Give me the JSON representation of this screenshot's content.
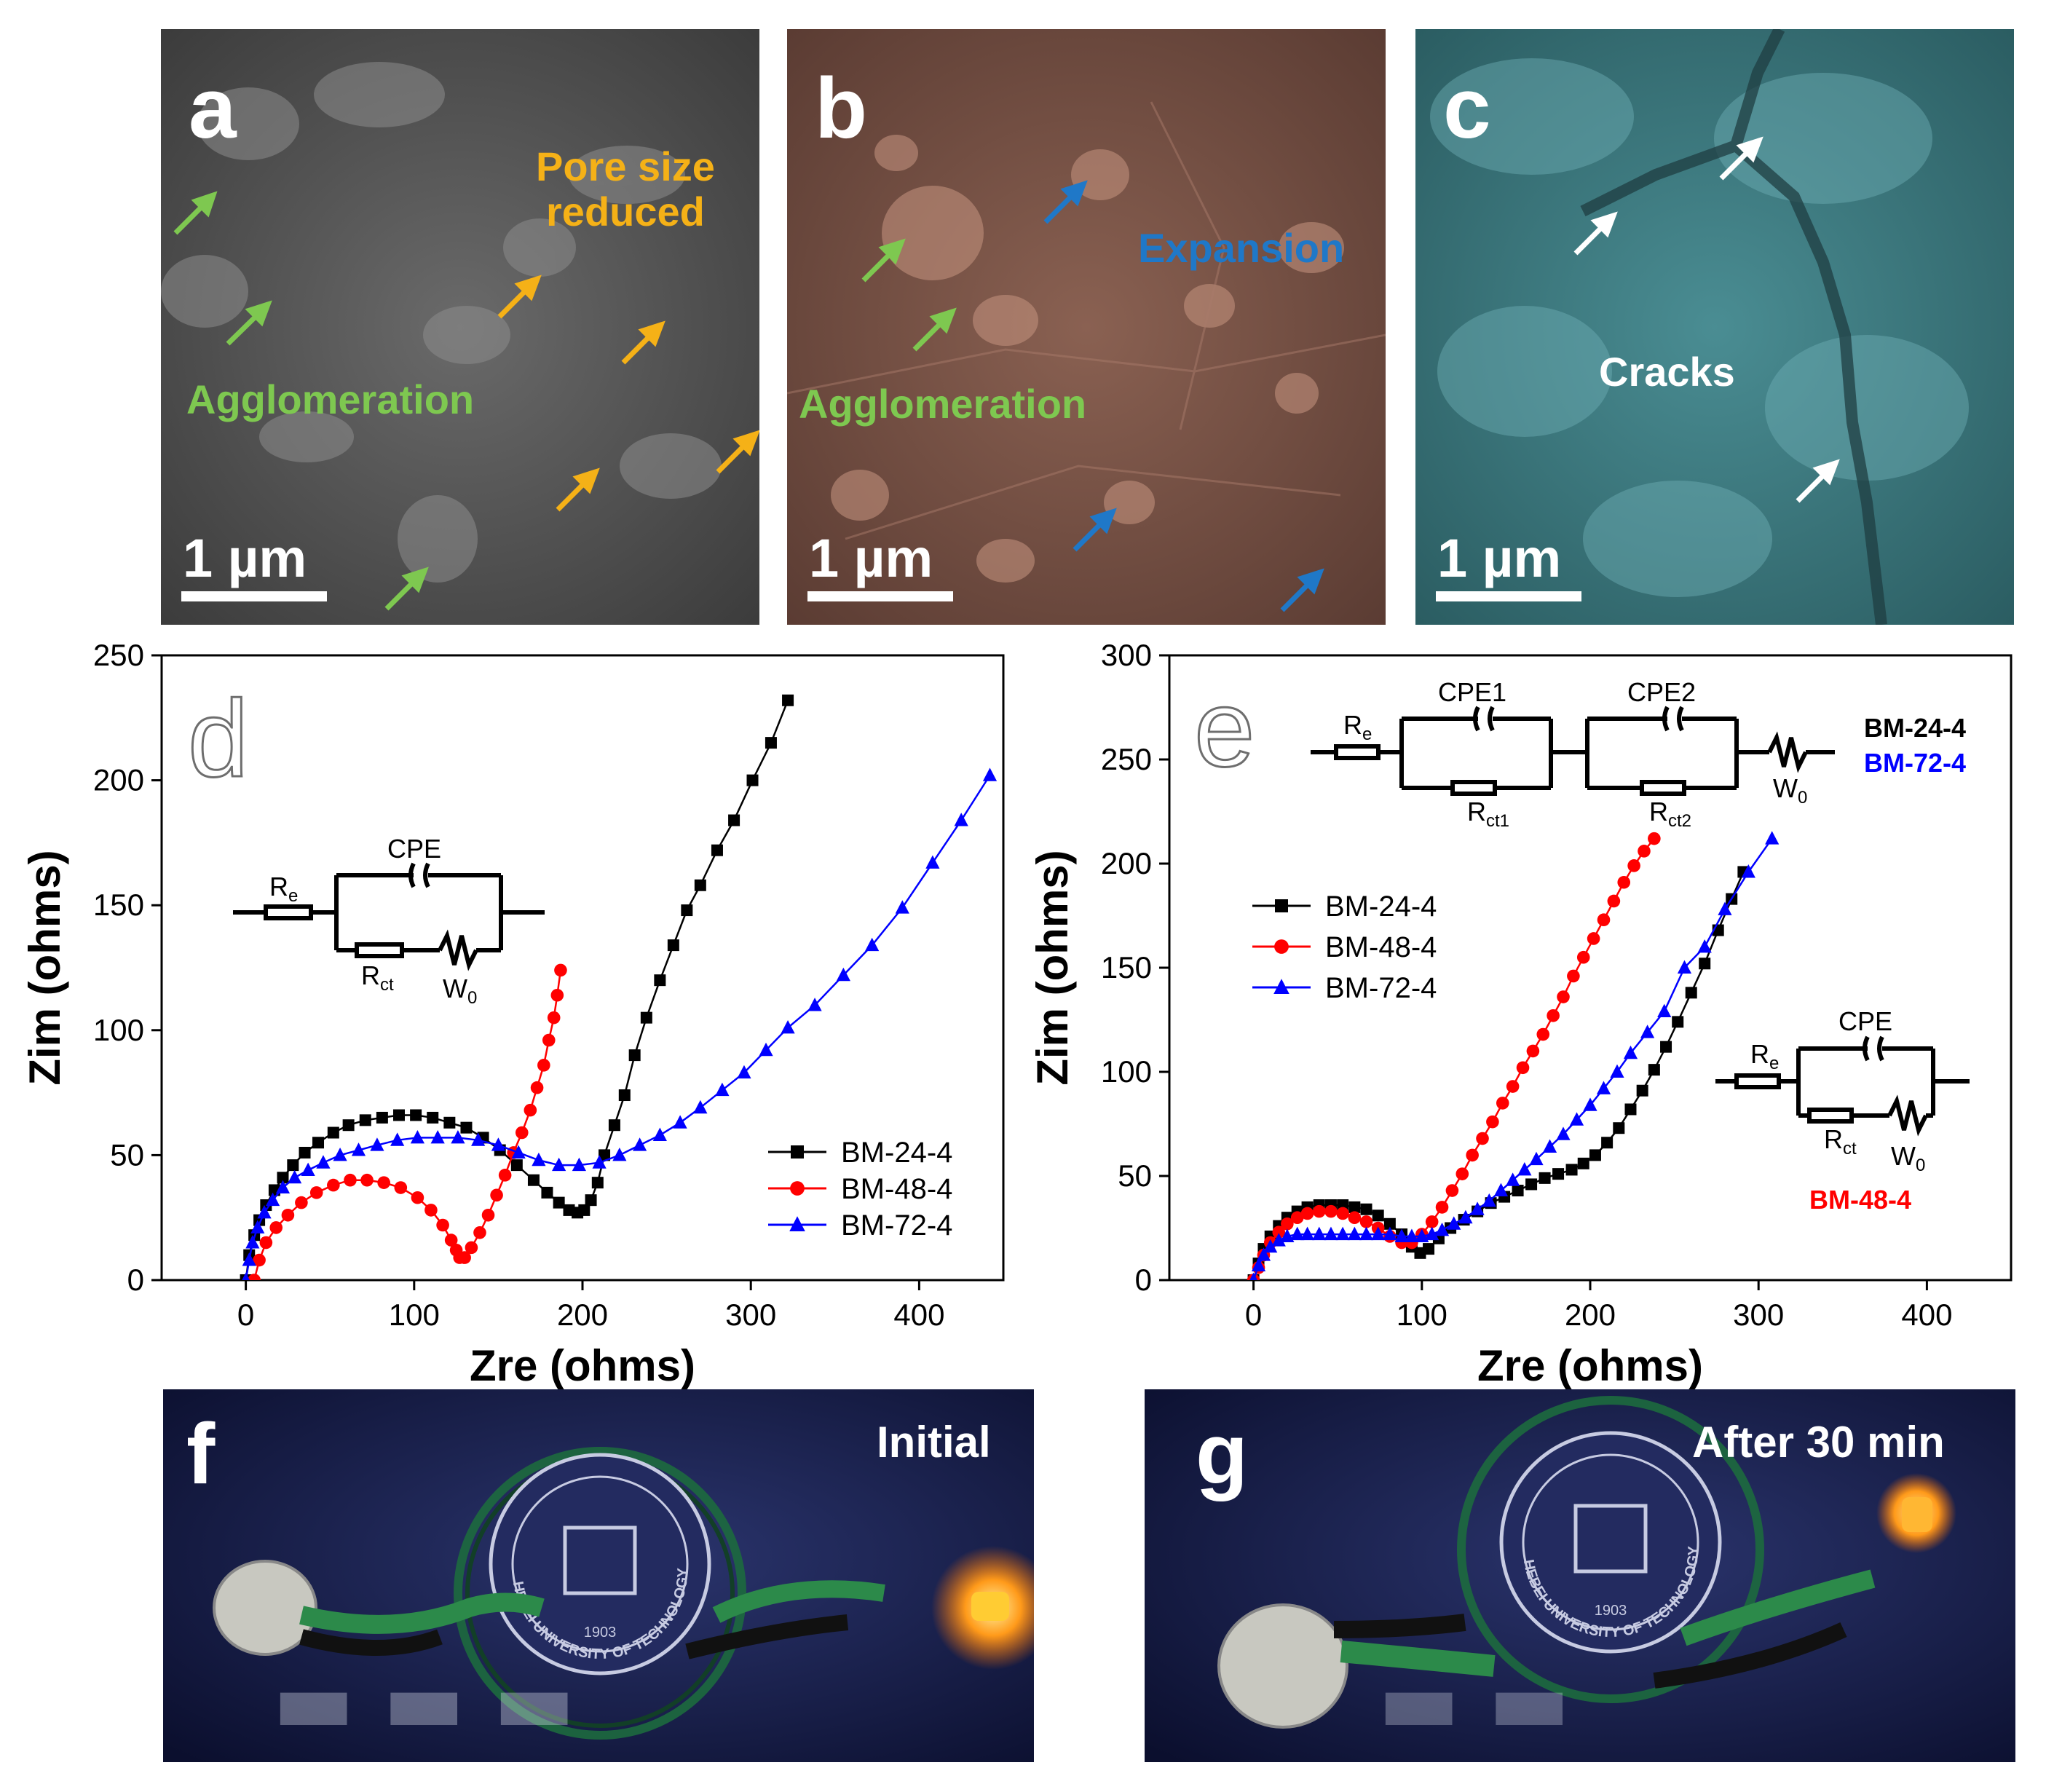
{
  "panels_sem": [
    {
      "label": "a",
      "scale": "1 µm",
      "bg": "#5a5a5a",
      "annotations": [
        {
          "id": "pore",
          "text": "Pore size\nreduced",
          "color": "#f5b117"
        },
        {
          "id": "agg",
          "text": "Agglomeration",
          "color": "#7ec850"
        }
      ]
    },
    {
      "label": "b",
      "scale": "1 µm",
      "bg": "#7a5548",
      "annotations": [
        {
          "id": "expansion",
          "text": "Expansion",
          "color": "#1f78c8"
        },
        {
          "id": "agg",
          "text": "Agglomeration",
          "color": "#7ec850"
        }
      ]
    },
    {
      "label": "c",
      "scale": "1 µm",
      "bg": "#3d7a80",
      "annotations": [
        {
          "id": "cracks",
          "text": "Cracks",
          "color": "#ffffff"
        }
      ]
    }
  ],
  "panels_photo": [
    {
      "label": "f",
      "status": "Initial",
      "logo_text": "HEBEI UNIVERSITY OF TECHNOLOGY",
      "logo_year": "1903"
    },
    {
      "label": "g",
      "status": "After 30 min",
      "logo_text": "HEBEI UNIVERSITY OF TECHNOLOGY",
      "logo_year": "1903"
    }
  ],
  "colors": {
    "black": "#000000",
    "red": "#ff0000",
    "blue": "#0000ff"
  },
  "chart_data": [
    {
      "panel": "d",
      "type": "scatter",
      "xlabel": "Zre (ohms)",
      "ylabel": "Zim (ohms)",
      "xlim": [
        -50,
        450
      ],
      "ylim": [
        0,
        250
      ],
      "xticks": [
        0,
        100,
        200,
        300,
        400
      ],
      "yticks": [
        0,
        50,
        100,
        150,
        200,
        250
      ],
      "circuit": {
        "CPE": "CPE",
        "Re": "R",
        "Re_sub": "e",
        "Rct": "R",
        "Rct_sub": "ct",
        "W": "W",
        "W_sub": "0"
      },
      "series": [
        {
          "name": "BM-24-4",
          "color": "#000000",
          "marker": "square",
          "x": [
            0,
            2,
            5,
            8,
            12,
            17,
            22,
            28,
            35,
            43,
            52,
            61,
            71,
            81,
            91,
            101,
            111,
            121,
            131,
            141,
            151,
            161,
            171,
            179,
            186,
            192,
            197,
            201,
            205,
            209,
            213,
            219,
            225,
            231,
            238,
            246,
            254,
            262,
            270,
            280,
            290,
            301,
            312,
            322
          ],
          "y": [
            0,
            10,
            18,
            24,
            30,
            36,
            41,
            46,
            51,
            55,
            59,
            62,
            64,
            65,
            66,
            66,
            65,
            63,
            61,
            57,
            52,
            46,
            40,
            35,
            31,
            28,
            27,
            28,
            32,
            39,
            50,
            62,
            74,
            90,
            105,
            120,
            134,
            148,
            158,
            172,
            184,
            200,
            215,
            232
          ]
        },
        {
          "name": "BM-48-4",
          "color": "#ff0000",
          "marker": "circle",
          "x": [
            5,
            8,
            12,
            18,
            25,
            33,
            42,
            52,
            62,
            72,
            82,
            92,
            102,
            110,
            117,
            122,
            125,
            127,
            130,
            134,
            139,
            144,
            149,
            154,
            159,
            164,
            169,
            173,
            177,
            180,
            183,
            185,
            187
          ],
          "y": [
            0,
            8,
            15,
            21,
            26,
            31,
            35,
            38,
            40,
            40,
            39,
            37,
            33,
            28,
            22,
            16,
            12,
            9,
            9,
            13,
            19,
            26,
            34,
            42,
            51,
            59,
            68,
            77,
            86,
            96,
            105,
            114,
            124
          ]
        },
        {
          "name": "BM-72-4",
          "color": "#0000ff",
          "marker": "triangle",
          "x": [
            0,
            2,
            4,
            7,
            11,
            16,
            22,
            29,
            37,
            46,
            56,
            67,
            78,
            90,
            102,
            114,
            126,
            138,
            150,
            162,
            174,
            186,
            198,
            210,
            222,
            234,
            246,
            258,
            270,
            283,
            296,
            309,
            322,
            338,
            355,
            372,
            390,
            408,
            425,
            442
          ],
          "y": [
            0,
            8,
            15,
            21,
            27,
            32,
            37,
            41,
            44,
            47,
            50,
            52,
            54,
            56,
            57,
            57,
            57,
            56,
            54,
            51,
            48,
            46,
            46,
            47,
            50,
            54,
            58,
            63,
            69,
            76,
            83,
            92,
            101,
            110,
            122,
            134,
            149,
            167,
            184,
            202
          ]
        }
      ]
    },
    {
      "panel": "e",
      "type": "scatter",
      "xlabel": "Zre (ohms)",
      "ylabel": "Zim (ohms)",
      "xlim": [
        -50,
        450
      ],
      "ylim": [
        0,
        300
      ],
      "xticks": [
        0,
        100,
        200,
        300,
        400
      ],
      "yticks": [
        0,
        50,
        100,
        150,
        200,
        250,
        300
      ],
      "circuit_top": {
        "CPE1": "CPE1",
        "CPE2": "CPE2",
        "Re": "R",
        "Re_sub": "e",
        "Rct1": "R",
        "Rct1_sub": "ct1",
        "Rct2": "R",
        "Rct2_sub": "ct2",
        "W": "W",
        "W_sub": "0",
        "applies_to": [
          "BM-24-4",
          "BM-72-4"
        ]
      },
      "circuit_bottom": {
        "CPE": "CPE",
        "Re": "R",
        "Re_sub": "e",
        "Rct": "R",
        "Rct_sub": "ct",
        "W": "W",
        "W_sub": "0",
        "applies_to": [
          "BM-48-4"
        ]
      },
      "series": [
        {
          "name": "BM-24-4",
          "color": "#000000",
          "marker": "square",
          "x": [
            0,
            3,
            6,
            10,
            15,
            20,
            26,
            32,
            39,
            46,
            53,
            60,
            67,
            74,
            81,
            88,
            94,
            99,
            104,
            110,
            117,
            125,
            133,
            141,
            149,
            157,
            165,
            173,
            181,
            189,
            196,
            203,
            210,
            217,
            224,
            231,
            238,
            245,
            252,
            260,
            268,
            276,
            284,
            291
          ],
          "y": [
            0,
            8,
            15,
            21,
            26,
            30,
            33,
            35,
            36,
            36,
            36,
            35,
            34,
            31,
            27,
            22,
            16,
            13,
            15,
            20,
            25,
            29,
            33,
            37,
            40,
            43,
            46,
            49,
            51,
            53,
            56,
            60,
            66,
            73,
            82,
            91,
            101,
            112,
            124,
            138,
            152,
            168,
            183,
            196
          ]
        },
        {
          "name": "BM-48-4",
          "color": "#ff0000",
          "marker": "circle",
          "x": [
            0,
            3,
            6,
            10,
            15,
            20,
            26,
            32,
            39,
            46,
            53,
            60,
            67,
            74,
            81,
            88,
            94,
            100,
            106,
            112,
            118,
            124,
            130,
            136,
            142,
            148,
            154,
            160,
            166,
            172,
            178,
            184,
            190,
            196,
            202,
            208,
            214,
            220,
            226,
            232,
            238
          ],
          "y": [
            0,
            6,
            12,
            18,
            23,
            27,
            30,
            32,
            33,
            33,
            32,
            30,
            28,
            25,
            21,
            18,
            18,
            22,
            28,
            35,
            43,
            51,
            60,
            68,
            76,
            85,
            93,
            102,
            110,
            118,
            127,
            136,
            146,
            155,
            164,
            173,
            182,
            191,
            199,
            206,
            212
          ]
        },
        {
          "name": "BM-72-4",
          "color": "#0000ff",
          "marker": "triangle",
          "x": [
            0,
            3,
            6,
            10,
            15,
            20,
            26,
            32,
            39,
            46,
            53,
            60,
            67,
            74,
            81,
            88,
            94,
            100,
            106,
            112,
            119,
            126,
            133,
            140,
            147,
            154,
            161,
            168,
            176,
            184,
            192,
            200,
            208,
            216,
            224,
            234,
            244,
            256,
            268,
            280,
            294,
            308
          ],
          "y": [
            0,
            7,
            12,
            16,
            19,
            21,
            22,
            22,
            22,
            22,
            22,
            22,
            22,
            22,
            22,
            21,
            21,
            21,
            22,
            24,
            27,
            30,
            34,
            38,
            43,
            48,
            53,
            58,
            64,
            70,
            77,
            84,
            92,
            100,
            109,
            119,
            129,
            150,
            160,
            178,
            196,
            212
          ]
        }
      ]
    }
  ]
}
